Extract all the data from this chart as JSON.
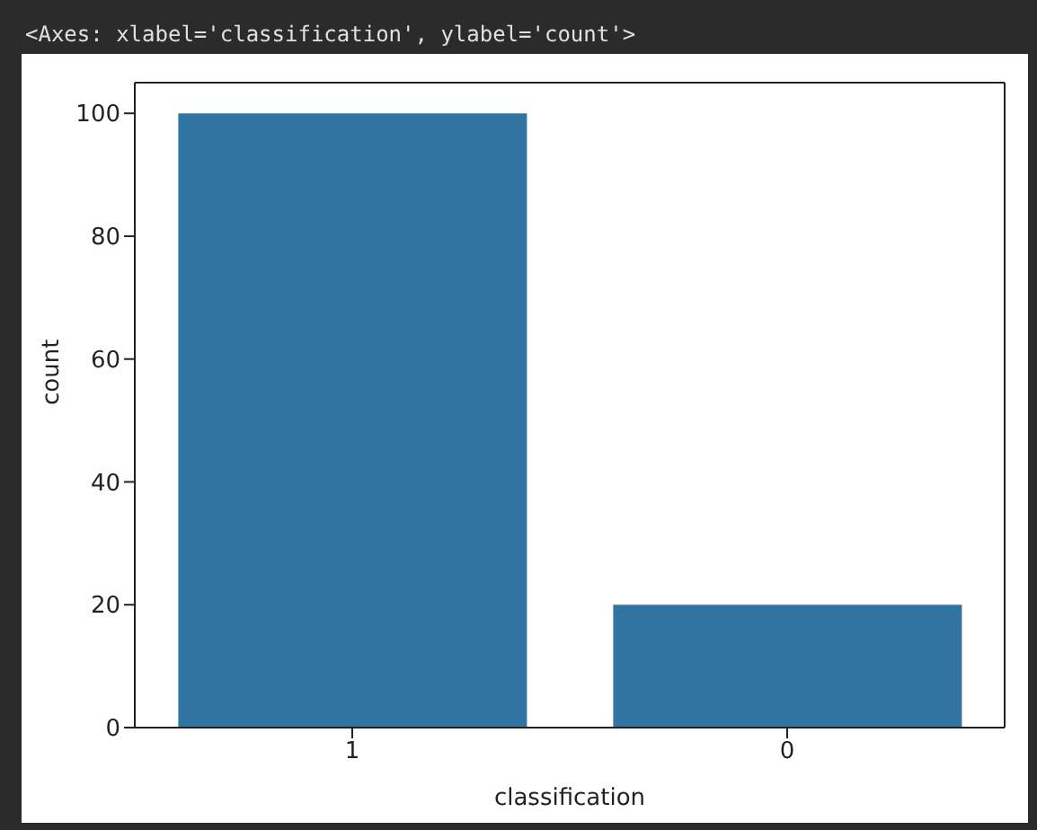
{
  "chart_data": {
    "type": "bar",
    "annotations": [
      "<Axes: xlabel='classification', ylabel='count'>"
    ],
    "xlabel": "classification",
    "ylabel": "count",
    "categories": [
      "1",
      "0"
    ],
    "values": [
      100,
      20
    ],
    "color": "#3274a1",
    "ylim": [
      0,
      105
    ],
    "yticks": [
      0,
      20,
      40,
      60,
      80,
      100
    ],
    "grid": false
  }
}
